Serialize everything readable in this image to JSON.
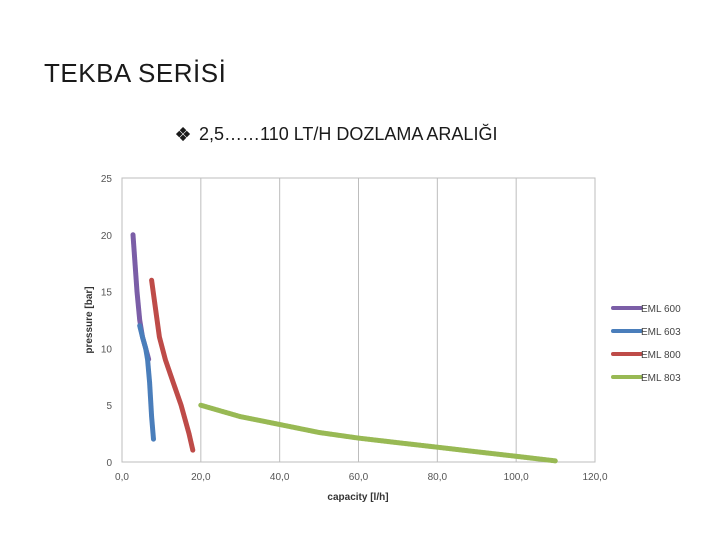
{
  "slide": {
    "title": "TEKBA SERİSİ",
    "subtitle": "2,5……110 LT/H DOZLAMA ARALIĞI",
    "bullet_icon": "diamond-bullet-icon"
  },
  "chart_data": {
    "type": "line",
    "xlabel": "capacity [l/h]",
    "ylabel": "pressure [bar]",
    "xlim": [
      0,
      120
    ],
    "ylim": [
      0,
      25
    ],
    "xticks": [
      "0,0",
      "20,0",
      "40,0",
      "60,0",
      "80,0",
      "100,0",
      "120,0"
    ],
    "yticks": [
      "0",
      "5",
      "10",
      "15",
      "20",
      "25"
    ],
    "grid": "vertical",
    "legend_position": "right",
    "series": [
      {
        "name": "EML 600",
        "color": "#7b5ea7",
        "points": [
          [
            2.8,
            20
          ],
          [
            3.3,
            17.5
          ],
          [
            3.8,
            15
          ],
          [
            4.5,
            12.5
          ],
          [
            5.2,
            11
          ],
          [
            6,
            10
          ],
          [
            6.8,
            9
          ]
        ]
      },
      {
        "name": "EML 603",
        "color": "#4a7ebb",
        "points": [
          [
            4.5,
            12
          ],
          [
            5.2,
            11
          ],
          [
            6,
            10
          ],
          [
            6.5,
            9
          ],
          [
            7,
            7
          ],
          [
            7.5,
            4
          ],
          [
            8,
            2
          ]
        ]
      },
      {
        "name": "EML 800",
        "color": "#be4b48",
        "points": [
          [
            7.5,
            16
          ],
          [
            8.5,
            13.5
          ],
          [
            9.5,
            11
          ],
          [
            11,
            9
          ],
          [
            13,
            7
          ],
          [
            15,
            5
          ],
          [
            17,
            2.5
          ],
          [
            18,
            1
          ]
        ]
      },
      {
        "name": "EML 803",
        "color": "#98b954",
        "points": [
          [
            20,
            5
          ],
          [
            30,
            4
          ],
          [
            40,
            3.3
          ],
          [
            50,
            2.6
          ],
          [
            60,
            2.1
          ],
          [
            70,
            1.7
          ],
          [
            80,
            1.3
          ],
          [
            90,
            0.9
          ],
          [
            100,
            0.5
          ],
          [
            110,
            0.1
          ]
        ]
      }
    ]
  }
}
